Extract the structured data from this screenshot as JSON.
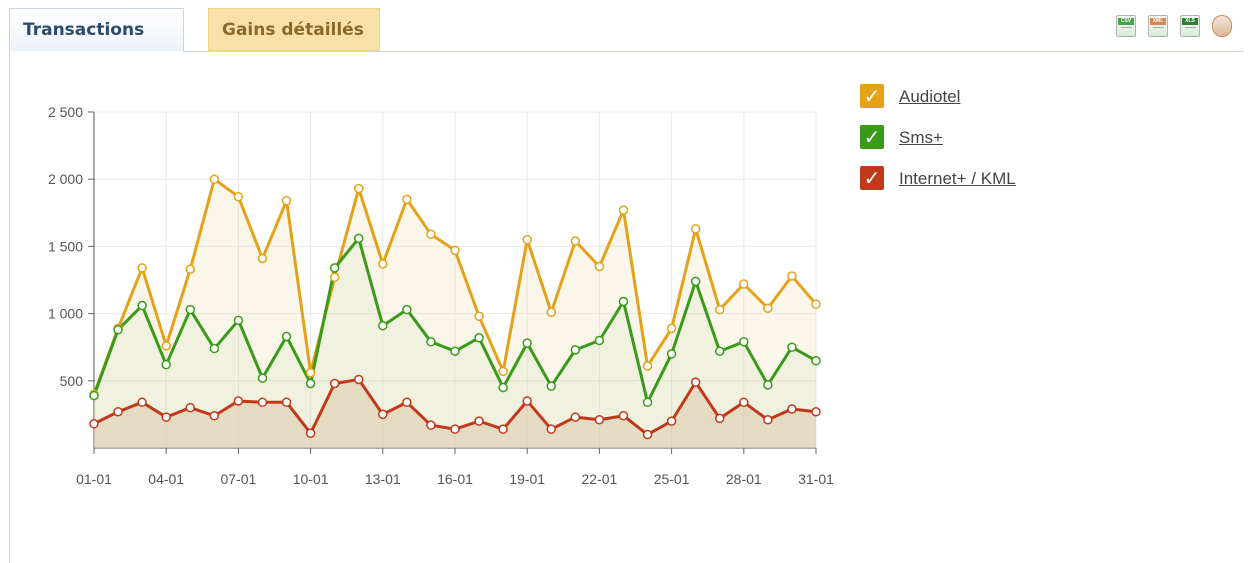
{
  "tabs": [
    {
      "label": "Transactions",
      "active": true
    },
    {
      "label": "Gains détaillés",
      "active": false
    }
  ],
  "export_icons": [
    {
      "name": "csv-export-icon",
      "tag": "CSV",
      "color": "#4aa34a"
    },
    {
      "name": "xml-export-icon",
      "tag": "XML",
      "color": "#d9864a"
    },
    {
      "name": "excel-export-icon",
      "tag": "XLS",
      "color": "#2f7d32"
    },
    {
      "name": "print-icon",
      "tag": "",
      "color": "#c98a5a"
    }
  ],
  "chart_data": {
    "type": "line",
    "categories": [
      "01-01",
      "02-01",
      "03-01",
      "04-01",
      "05-01",
      "06-01",
      "07-01",
      "08-01",
      "09-01",
      "10-01",
      "11-01",
      "12-01",
      "13-01",
      "14-01",
      "15-01",
      "16-01",
      "17-01",
      "18-01",
      "19-01",
      "20-01",
      "21-01",
      "22-01",
      "23-01",
      "24-01",
      "25-01",
      "26-01",
      "27-01",
      "28-01",
      "29-01",
      "30-01",
      "31-01"
    ],
    "xticks": [
      "01-01",
      "04-01",
      "07-01",
      "10-01",
      "13-01",
      "16-01",
      "19-01",
      "22-01",
      "25-01",
      "28-01",
      "31-01"
    ],
    "yticks": [
      500,
      1000,
      1500,
      2000,
      2500
    ],
    "ytick_labels": [
      "500",
      "1 000",
      "1 500",
      "2 000",
      "2 500"
    ],
    "ylim": [
      0,
      2500
    ],
    "grid": true,
    "legend_position": "right",
    "series": [
      {
        "name": "Audiotel",
        "color": "#e3a21a",
        "values": [
          400,
          890,
          1340,
          760,
          1330,
          2000,
          1870,
          1410,
          1840,
          560,
          1270,
          1930,
          1370,
          1850,
          1590,
          1470,
          980,
          570,
          1550,
          1010,
          1540,
          1350,
          1770,
          610,
          890,
          1630,
          1030,
          1220,
          1040,
          1280,
          1070
        ]
      },
      {
        "name": "Sms+",
        "color": "#3a9a1a",
        "values": [
          390,
          880,
          1060,
          620,
          1030,
          740,
          950,
          520,
          830,
          480,
          1340,
          1560,
          910,
          1030,
          790,
          720,
          820,
          450,
          780,
          460,
          730,
          800,
          1090,
          340,
          700,
          1240,
          720,
          790,
          470,
          750,
          650
        ]
      },
      {
        "name": "Internet+ / KML",
        "color": "#c0391b",
        "values": [
          180,
          270,
          340,
          230,
          300,
          240,
          350,
          340,
          340,
          110,
          480,
          510,
          250,
          340,
          170,
          140,
          200,
          140,
          350,
          140,
          230,
          210,
          240,
          100,
          200,
          490,
          220,
          340,
          210,
          290,
          270
        ]
      }
    ]
  }
}
